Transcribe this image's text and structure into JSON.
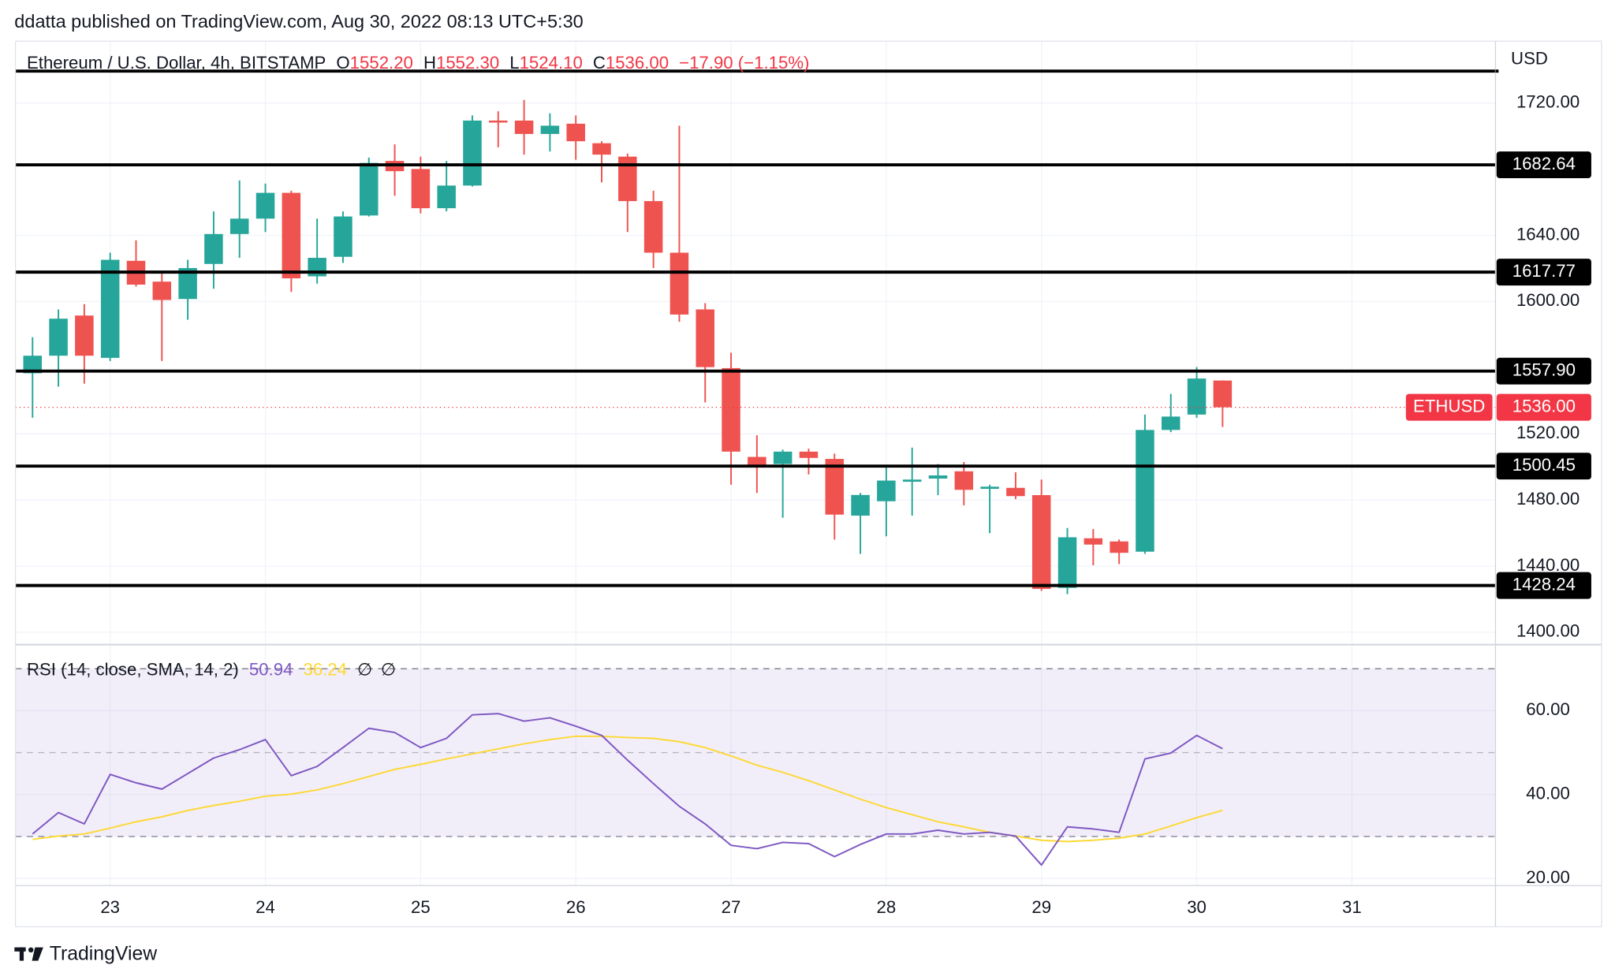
{
  "header": {
    "publisher": "ddatta published on TradingView.com, Aug 30, 2022 08:13 UTC+5:30"
  },
  "footer": {
    "brand": "TradingView"
  },
  "chart_data": [
    {
      "type": "candlestick",
      "title": "Ethereum / U.S. Dollar, 4h, BITSTAMP",
      "ohlc_legend": {
        "o": "O",
        "open": "1552.20",
        "h": "H",
        "high": "1552.30",
        "l": "L",
        "low": "1524.10",
        "c": "C",
        "close": "1536.00",
        "change": "−17.90 (−1.15%)"
      },
      "axis_unit": "USD",
      "x": [
        22.5,
        22.6667,
        22.8333,
        23,
        23.1667,
        23.3333,
        23.5,
        23.6667,
        23.8333,
        24,
        24.1667,
        24.3333,
        24.5,
        24.6667,
        24.8333,
        25,
        25.1667,
        25.3333,
        25.5,
        25.6667,
        25.8333,
        26,
        26.1667,
        26.3333,
        26.5,
        26.6667,
        26.8333,
        27,
        27.1667,
        27.3333,
        27.5,
        27.6667,
        27.8333,
        28,
        28.1667,
        28.3333,
        28.5,
        28.6667,
        28.8333,
        29,
        29.1667,
        29.3333,
        29.5,
        29.6667,
        29.8333,
        30,
        30.1667
      ],
      "open": [
        1556.6,
        1567.2,
        1591.5,
        1565.9,
        1624.6,
        1612,
        1601.5,
        1622.7,
        1640.8,
        1650.1,
        1665.7,
        1615.2,
        1627,
        1652,
        1685,
        1680.1,
        1656.4,
        1670.1,
        1709.4,
        1709.4,
        1701.3,
        1707.5,
        1695.7,
        1687.6,
        1660.7,
        1629.5,
        1595.2,
        1559.7,
        1506,
        1501.7,
        1509.2,
        1504.8,
        1470.5,
        1479.2,
        1491,
        1492.9,
        1497.3,
        1486.7,
        1487.3,
        1482.9,
        1426.8,
        1456.8,
        1454.9,
        1448.7,
        1522.3,
        1531.6,
        1552.2
      ],
      "high": [
        1578.4,
        1595.2,
        1598.4,
        1629.5,
        1637,
        1617,
        1625.2,
        1654.5,
        1673.2,
        1671.3,
        1667,
        1650.1,
        1654.5,
        1687,
        1695,
        1687.6,
        1685,
        1712.5,
        1715,
        1721.9,
        1713.8,
        1712.5,
        1696.9,
        1689.4,
        1667,
        1706.3,
        1599,
        1569,
        1519.1,
        1510.4,
        1511,
        1508,
        1484.2,
        1499.8,
        1511.6,
        1501.7,
        1502.9,
        1489.2,
        1496.7,
        1492.3,
        1463,
        1462.4,
        1456.1,
        1531.6,
        1544.1,
        1560.3,
        1552.3
      ],
      "low": [
        1529.7,
        1548.5,
        1550.3,
        1564,
        1609,
        1564,
        1589,
        1607.7,
        1626.4,
        1642,
        1605.8,
        1610.8,
        1623.3,
        1651.4,
        1663.9,
        1653.3,
        1654.5,
        1669.5,
        1693.2,
        1688.8,
        1690.7,
        1685.7,
        1672,
        1642,
        1620.2,
        1587.7,
        1539,
        1489.2,
        1484.2,
        1469.2,
        1495.4,
        1456,
        1447.4,
        1458,
        1470.5,
        1482.9,
        1476.7,
        1459.9,
        1480.5,
        1425,
        1423,
        1440.5,
        1441.2,
        1447.4,
        1521,
        1529.7,
        1524.1
      ],
      "close": [
        1567.2,
        1589.6,
        1567.2,
        1625.2,
        1610.2,
        1600.9,
        1620.2,
        1640.8,
        1650.1,
        1665.7,
        1614,
        1626.4,
        1651.4,
        1683.8,
        1678.8,
        1656.4,
        1670.1,
        1709.4,
        1708.2,
        1701.3,
        1706.3,
        1696.9,
        1688.8,
        1660.7,
        1629.5,
        1592.1,
        1560.3,
        1509.2,
        1501,
        1509.2,
        1505.4,
        1471.1,
        1483,
        1491.7,
        1492.3,
        1494.8,
        1486.1,
        1488,
        1482.3,
        1426.2,
        1457.4,
        1453,
        1448,
        1522.3,
        1530.4,
        1553.4,
        1536
      ],
      "up_color": "#26a69a",
      "down_color": "#ef5350",
      "xlim": [
        22.39,
        31.925
      ],
      "xticks": [
        23,
        24,
        25,
        26,
        27,
        28,
        29,
        30,
        31
      ],
      "ylim": [
        1392.5,
        1757.4
      ],
      "yticks": [
        {
          "value": 1400,
          "label": "1400.00"
        },
        {
          "value": 1440,
          "label": "1440.00"
        },
        {
          "value": 1480,
          "label": "1480.00"
        },
        {
          "value": 1520,
          "label": "1520.00"
        },
        {
          "value": 1600,
          "label": "1600.00"
        },
        {
          "value": 1640,
          "label": "1640.00"
        },
        {
          "value": 1720,
          "label": "1720.00"
        }
      ],
      "grid": true,
      "level_color": "#000000",
      "levels": [
        {
          "value": 1739.3
        },
        {
          "value": 1682.64,
          "label": "1682.64"
        },
        {
          "value": 1617.77,
          "label": "1617.77"
        },
        {
          "value": 1557.9,
          "label": "1557.90"
        },
        {
          "value": 1500.45,
          "label": "1500.45"
        },
        {
          "value": 1428.24,
          "label": "1428.24"
        }
      ],
      "last_price": {
        "value": 1536,
        "symbol": "ETHUSD",
        "label": "1536.00",
        "color": "#f23645"
      }
    },
    {
      "type": "line",
      "title": "RSI (14, close, SMA, 14, 2)",
      "status_icons": [
        "∅",
        "∅"
      ],
      "x": [
        22.5,
        22.6667,
        22.8333,
        23,
        23.1667,
        23.3333,
        23.5,
        23.6667,
        23.8333,
        24,
        24.1667,
        24.3333,
        24.5,
        24.6667,
        24.8333,
        25,
        25.1667,
        25.3333,
        25.5,
        25.6667,
        25.8333,
        26,
        26.1667,
        26.3333,
        26.5,
        26.6667,
        26.8333,
        27,
        27.1667,
        27.3333,
        27.5,
        27.6667,
        27.8333,
        28,
        28.1667,
        28.3333,
        28.5,
        28.6667,
        28.8333,
        29,
        29.1667,
        29.3333,
        29.5,
        29.6667,
        29.8333,
        30,
        30.1667
      ],
      "series": [
        {
          "color": "#7e57c2",
          "last_label": "50.94",
          "values": [
            30.6,
            35.7,
            33.0,
            44.8,
            42.8,
            41.3,
            45.0,
            48.7,
            50.7,
            53.1,
            44.5,
            46.7,
            51.2,
            55.8,
            54.8,
            51.2,
            53.4,
            59.0,
            59.3,
            57.5,
            58.3,
            56.3,
            54.1,
            48.2,
            42.6,
            37.2,
            33.0,
            27.9,
            27.1,
            28.6,
            28.3,
            25.2,
            28.1,
            30.6,
            30.6,
            31.5,
            30.6,
            31.0,
            30.1,
            23.2,
            32.3,
            31.8,
            31.0,
            48.5,
            49.9,
            54.1,
            50.94
          ]
        },
        {
          "color": "#fdd835",
          "last_label": "36.24",
          "values": [
            29.3,
            30.1,
            30.6,
            32.0,
            33.5,
            34.7,
            36.2,
            37.4,
            38.4,
            39.6,
            40.1,
            41.1,
            42.6,
            44.3,
            46.0,
            47.2,
            48.5,
            49.7,
            50.9,
            52.1,
            53.1,
            53.9,
            53.9,
            53.6,
            53.4,
            52.6,
            51.2,
            49.2,
            47.0,
            45.3,
            43.3,
            41.1,
            38.9,
            36.9,
            35.2,
            33.5,
            32.3,
            31.0,
            30.1,
            29.1,
            28.8,
            29.1,
            29.6,
            30.6,
            32.5,
            34.5,
            36.24
          ]
        }
      ],
      "ylim": [
        18.3,
        75.5
      ],
      "yticks": [
        {
          "value": 20,
          "label": "20.00"
        },
        {
          "value": 40,
          "label": "40.00"
        },
        {
          "value": 60,
          "label": "60.00"
        }
      ],
      "band": [
        30,
        70
      ],
      "midline": 50,
      "band_color": "#7e57c2"
    }
  ]
}
